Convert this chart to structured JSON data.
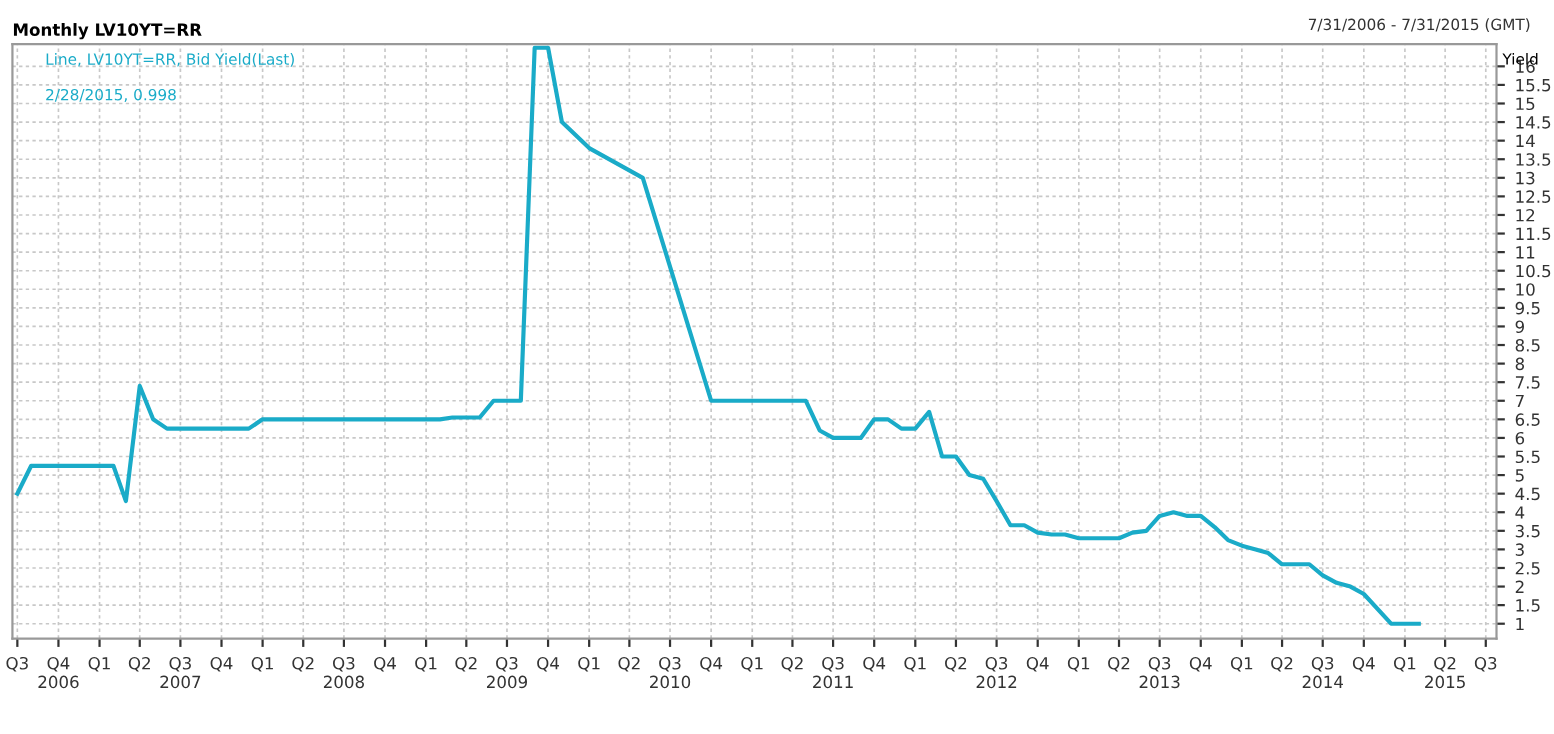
{
  "chart_data": {
    "type": "line",
    "title": "Monthly LV10YT=RR",
    "subtitle": "7/31/2006 - 7/31/2015 (GMT)",
    "ylabel": "Yield",
    "annotations": [
      "2/28/2015, 0.998"
    ],
    "x": [
      "2006-07",
      "2006-08",
      "2007-02",
      "2007-03",
      "2007-04",
      "2007-05",
      "2007-06",
      "2007-12",
      "2008-01",
      "2009-02",
      "2009-03",
      "2009-05",
      "2009-06",
      "2009-08",
      "2009-09",
      "2009-10",
      "2009-11",
      "2010-01",
      "2010-05",
      "2010-10",
      "2011-05",
      "2011-06",
      "2011-07",
      "2011-09",
      "2011-10",
      "2011-11",
      "2011-12",
      "2012-01",
      "2012-02",
      "2012-03",
      "2012-04",
      "2012-05",
      "2012-06",
      "2012-07",
      "2012-08",
      "2012-09",
      "2012-10",
      "2012-11",
      "2012-12",
      "2013-01",
      "2013-04",
      "2013-05",
      "2013-06",
      "2013-07",
      "2013-08",
      "2013-09",
      "2013-10",
      "2013-11",
      "2013-12",
      "2014-01",
      "2014-02",
      "2014-03",
      "2014-04",
      "2014-06",
      "2014-07",
      "2014-08",
      "2014-09",
      "2014-10",
      "2014-12",
      "2015-02"
    ],
    "series": [
      {
        "name": "Line, LV10YT=RR, Bid Yield(Last)",
        "color": "#1aabc8",
        "values": [
          4.5,
          5.25,
          5.25,
          4.3,
          7.4,
          6.5,
          6.25,
          6.25,
          6.5,
          6.5,
          6.55,
          6.55,
          7.0,
          7.0,
          16.5,
          16.5,
          14.5,
          13.8,
          13.0,
          7.0,
          7.0,
          6.2,
          6.0,
          6.0,
          6.5,
          6.5,
          6.25,
          6.25,
          6.7,
          5.5,
          5.5,
          5.0,
          4.9,
          4.3,
          3.65,
          3.65,
          3.45,
          3.4,
          3.4,
          3.3,
          3.3,
          3.45,
          3.5,
          3.9,
          4.0,
          3.9,
          3.9,
          3.6,
          3.25,
          3.1,
          3.0,
          2.9,
          2.6,
          2.6,
          2.3,
          2.1,
          2.0,
          1.8,
          1.0,
          1.0
        ]
      }
    ],
    "ylim": [
      0.6,
      16.6
    ],
    "yticks": [
      1,
      1.5,
      2,
      2.5,
      3,
      3.5,
      4,
      4.5,
      5,
      5.5,
      6,
      6.5,
      7,
      7.5,
      8,
      8.5,
      9,
      9.5,
      10,
      10.5,
      11,
      11.5,
      12,
      12.5,
      13,
      13.5,
      14,
      14.5,
      15,
      15.5,
      16
    ],
    "xlim": [
      "2006-06-20",
      "2015-07-25"
    ],
    "xticks": [
      {
        "value": "2006-07",
        "label": "Q3"
      },
      {
        "value": "2006-10",
        "label": "Q4\n2006"
      },
      {
        "value": "2007-01",
        "label": "Q1"
      },
      {
        "value": "2007-04",
        "label": "Q2"
      },
      {
        "value": "2007-07",
        "label": "Q3\n2007"
      },
      {
        "value": "2007-10",
        "label": "Q4"
      },
      {
        "value": "2008-01",
        "label": "Q1"
      },
      {
        "value": "2008-04",
        "label": "Q2"
      },
      {
        "value": "2008-07",
        "label": "Q3\n2008"
      },
      {
        "value": "2008-10",
        "label": "Q4"
      },
      {
        "value": "2009-01",
        "label": "Q1"
      },
      {
        "value": "2009-04",
        "label": "Q2"
      },
      {
        "value": "2009-07",
        "label": "Q3\n2009"
      },
      {
        "value": "2009-10",
        "label": "Q4"
      },
      {
        "value": "2010-01",
        "label": "Q1"
      },
      {
        "value": "2010-04",
        "label": "Q2"
      },
      {
        "value": "2010-07",
        "label": "Q3\n2010"
      },
      {
        "value": "2010-10",
        "label": "Q4"
      },
      {
        "value": "2011-01",
        "label": "Q1"
      },
      {
        "value": "2011-04",
        "label": "Q2"
      },
      {
        "value": "2011-07",
        "label": "Q3\n2011"
      },
      {
        "value": "2011-10",
        "label": "Q4"
      },
      {
        "value": "2012-01",
        "label": "Q1"
      },
      {
        "value": "2012-04",
        "label": "Q2"
      },
      {
        "value": "2012-07",
        "label": "Q3\n2012"
      },
      {
        "value": "2012-10",
        "label": "Q4"
      },
      {
        "value": "2013-01",
        "label": "Q1"
      },
      {
        "value": "2013-04",
        "label": "Q2"
      },
      {
        "value": "2013-07",
        "label": "Q3\n2013"
      },
      {
        "value": "2013-10",
        "label": "Q4"
      },
      {
        "value": "2014-01",
        "label": "Q1"
      },
      {
        "value": "2014-04",
        "label": "Q2"
      },
      {
        "value": "2014-07",
        "label": "Q3\n2014"
      },
      {
        "value": "2014-10",
        "label": "Q4"
      },
      {
        "value": "2015-01",
        "label": "Q1"
      },
      {
        "value": "2015-04",
        "label": "Q2\n2015"
      },
      {
        "value": "2015-07",
        "label": "Q3"
      }
    ],
    "grid": true,
    "legend": "top left",
    "marker": "none",
    "line_style": "solid"
  }
}
